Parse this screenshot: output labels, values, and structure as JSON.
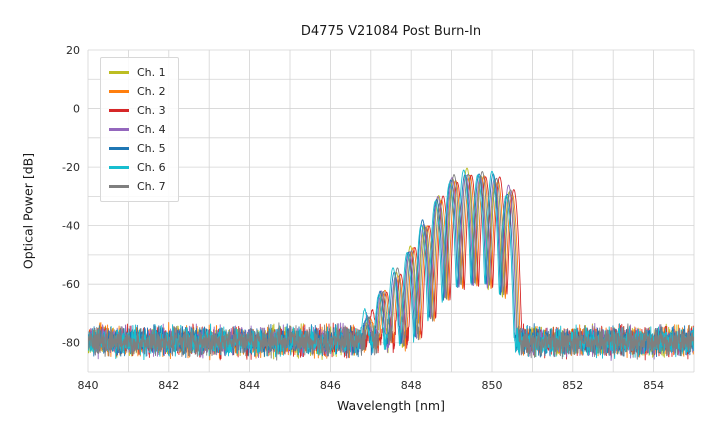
{
  "chart_data": {
    "type": "line",
    "title": "D4775 V21084 Post Burn-In",
    "xlabel": "Wavelength [nm]",
    "ylabel": "Optical Power [dB]",
    "xlim": [
      840,
      855
    ],
    "ylim": [
      -90,
      20
    ],
    "xticks": [
      840,
      842,
      844,
      846,
      848,
      850,
      852,
      854
    ],
    "yticks": [
      20,
      0,
      -20,
      -40,
      -60,
      -80
    ],
    "grid": {
      "x_step_nm": 1,
      "y_step_db": 10,
      "color": "#d4d4d4",
      "on": true
    },
    "legend_position": "upper-left",
    "background_color": "#ffffff",
    "series": [
      {
        "name": "Ch. 1",
        "color": "#bcbd22",
        "offset_nm": -0.02,
        "seed": 101
      },
      {
        "name": "Ch. 2",
        "color": "#ff7f0e",
        "offset_nm": 0.05,
        "seed": 202
      },
      {
        "name": "Ch. 3",
        "color": "#d62728",
        "offset_nm": 0.09,
        "seed": 303
      },
      {
        "name": "Ch. 4",
        "color": "#9467bd",
        "offset_nm": -0.04,
        "seed": 404
      },
      {
        "name": "Ch. 5",
        "color": "#1f77b4",
        "offset_nm": -0.07,
        "seed": 505
      },
      {
        "name": "Ch. 6",
        "color": "#17becf",
        "offset_nm": -0.1,
        "seed": 606
      },
      {
        "name": "Ch. 7",
        "color": "#7f7f7f",
        "offset_nm": 0.01,
        "seed": 707
      }
    ],
    "spectrum_model": {
      "description": "Multimode laser spectrum per channel: Gaussian longitudinal modes summed in linear power over a fluctuating noise floor; channels are slightly wavelength-shifted copies.",
      "noise_floor_db": -79.5,
      "noise_fluctuation_db": 4.6,
      "mode_sigma_nm": 0.057,
      "mode_peak_jitter_db": 4,
      "signal_range_nm": [
        846.8,
        850.9
      ],
      "envelope_peak_db": -22,
      "modes": [
        {
          "center_nm": 846.95,
          "peak_db": -71.0
        },
        {
          "center_nm": 847.3,
          "peak_db": -64.0
        },
        {
          "center_nm": 847.65,
          "peak_db": -56.0
        },
        {
          "center_nm": 848.0,
          "peak_db": -47.5
        },
        {
          "center_nm": 848.35,
          "peak_db": -39.5
        },
        {
          "center_nm": 848.7,
          "peak_db": -30.5
        },
        {
          "center_nm": 849.05,
          "peak_db": -24.5
        },
        {
          "center_nm": 849.4,
          "peak_db": -22.2
        },
        {
          "center_nm": 849.75,
          "peak_db": -22.0
        },
        {
          "center_nm": 850.1,
          "peak_db": -23.2
        },
        {
          "center_nm": 850.45,
          "peak_db": -28.0
        }
      ],
      "points_per_trace": 2200
    }
  }
}
